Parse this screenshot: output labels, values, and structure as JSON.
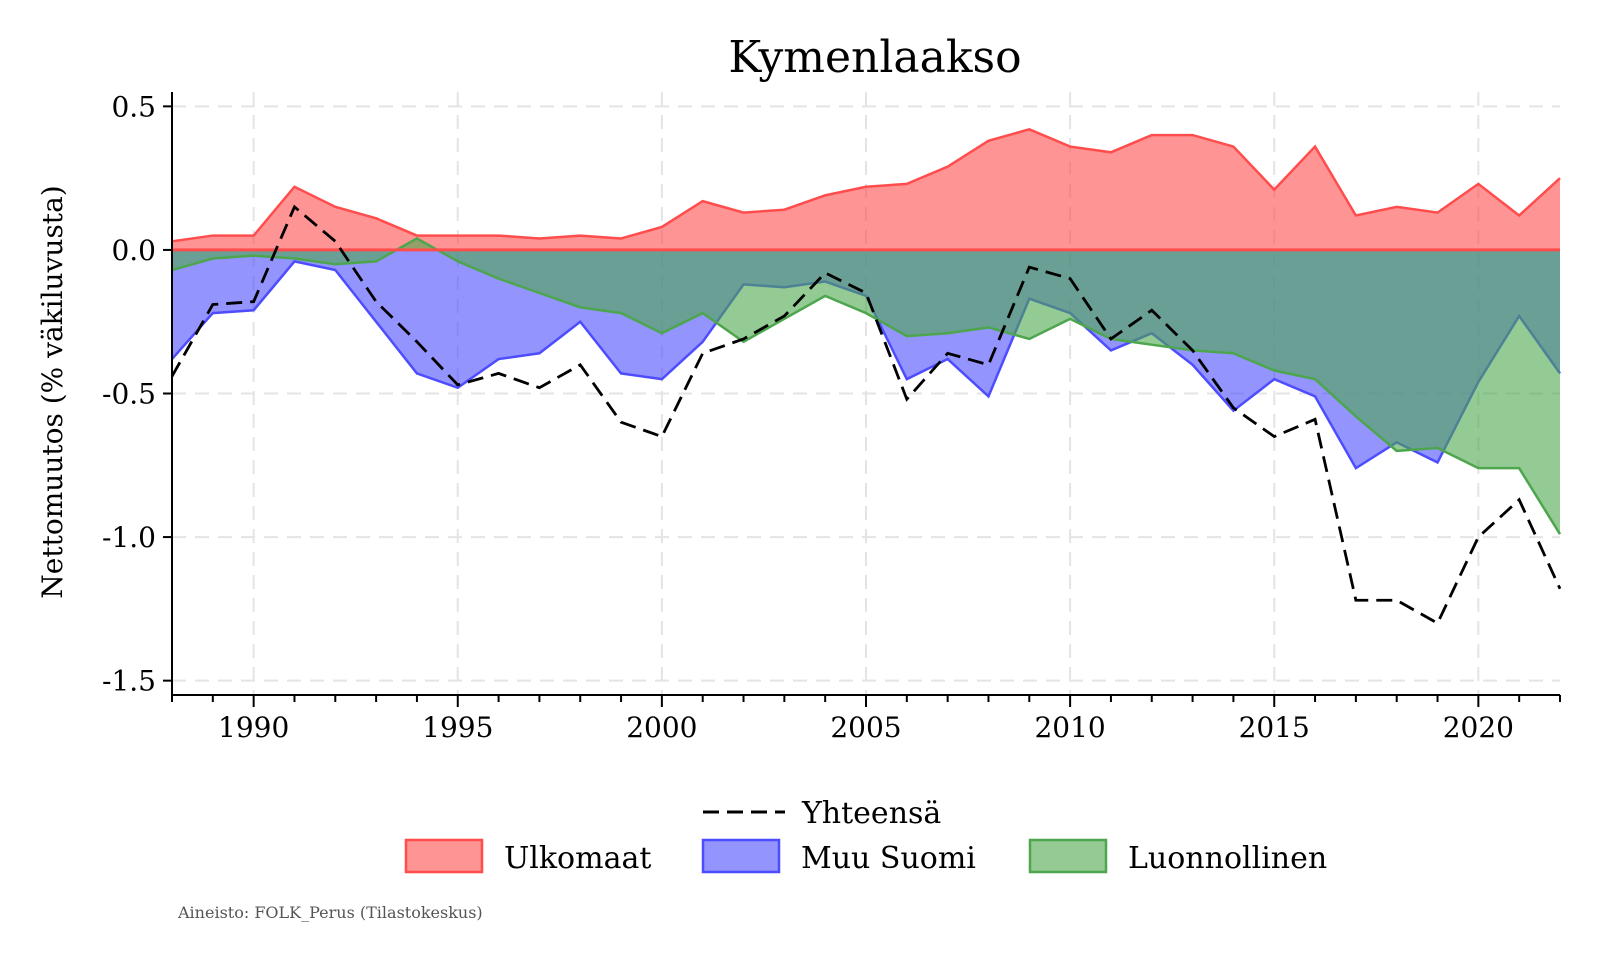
{
  "chart_data": {
    "type": "area",
    "title": "Kymenlaakso",
    "xlabel": "",
    "ylabel": "Nettomuutos (% väkiluvusta)",
    "xlim": [
      1988,
      2022
    ],
    "ylim": [
      -1.55,
      0.55
    ],
    "xticks": [
      1990,
      1995,
      2000,
      2005,
      2010,
      2015,
      2020
    ],
    "yticks": [
      0.5,
      0.0,
      -0.5,
      -1.0,
      -1.5
    ],
    "ytick_labels": [
      "0.5",
      "0.0",
      "-0.5",
      "-1.0",
      "-1.5"
    ],
    "grid": true,
    "source": "Aineisto: FOLK_Perus (Tilastokeskus)",
    "x": [
      1988,
      1989,
      1990,
      1991,
      1992,
      1993,
      1994,
      1995,
      1996,
      1997,
      1998,
      1999,
      2000,
      2001,
      2002,
      2003,
      2004,
      2005,
      2006,
      2007,
      2008,
      2009,
      2010,
      2011,
      2012,
      2013,
      2014,
      2015,
      2016,
      2017,
      2018,
      2019,
      2020,
      2021,
      2022
    ],
    "series": [
      {
        "name": "Ulkomaat",
        "kind": "area",
        "color": "#ff4d4d",
        "values": [
          0.03,
          0.05,
          0.05,
          0.22,
          0.15,
          0.11,
          0.05,
          0.05,
          0.05,
          0.04,
          0.05,
          0.04,
          0.08,
          0.17,
          0.13,
          0.14,
          0.19,
          0.22,
          0.23,
          0.29,
          0.38,
          0.42,
          0.36,
          0.34,
          0.4,
          0.4,
          0.36,
          0.21,
          0.36,
          0.12,
          0.15,
          0.13,
          0.23,
          0.12,
          0.25
        ]
      },
      {
        "name": "Muu Suomi",
        "kind": "area",
        "color": "#4d4dff",
        "values": [
          -0.38,
          -0.22,
          -0.21,
          -0.04,
          -0.07,
          -0.25,
          -0.43,
          -0.48,
          -0.38,
          -0.36,
          -0.25,
          -0.43,
          -0.45,
          -0.32,
          -0.12,
          -0.13,
          -0.11,
          -0.16,
          -0.45,
          -0.38,
          -0.51,
          -0.17,
          -0.22,
          -0.35,
          -0.29,
          -0.4,
          -0.56,
          -0.45,
          -0.51,
          -0.76,
          -0.67,
          -0.74,
          -0.46,
          -0.23,
          -0.43
        ]
      },
      {
        "name": "Luonnollinen",
        "kind": "area",
        "color": "#4da64d",
        "values": [
          -0.07,
          -0.03,
          -0.02,
          -0.03,
          -0.05,
          -0.04,
          0.04,
          -0.04,
          -0.1,
          -0.15,
          -0.2,
          -0.22,
          -0.29,
          -0.22,
          -0.32,
          -0.24,
          -0.16,
          -0.22,
          -0.3,
          -0.29,
          -0.27,
          -0.31,
          -0.24,
          -0.31,
          -0.33,
          -0.35,
          -0.36,
          -0.42,
          -0.45,
          -0.58,
          -0.7,
          -0.69,
          -0.76,
          -0.76,
          -0.99
        ]
      },
      {
        "name": "Yhteensä",
        "kind": "line",
        "color": "#000000",
        "values": [
          -0.44,
          -0.19,
          -0.18,
          0.15,
          0.03,
          -0.18,
          -0.32,
          -0.47,
          -0.43,
          -0.48,
          -0.4,
          -0.6,
          -0.65,
          -0.36,
          -0.31,
          -0.23,
          -0.08,
          -0.15,
          -0.52,
          -0.36,
          -0.4,
          -0.06,
          -0.1,
          -0.31,
          -0.21,
          -0.35,
          -0.55,
          -0.65,
          -0.59,
          -1.22,
          -1.22,
          -1.3,
          -1.0,
          -0.87,
          -1.18
        ]
      }
    ],
    "legend": {
      "placement": "bottom",
      "entries": [
        "Yhteensä",
        "Ulkomaat",
        "Muu Suomi",
        "Luonnollinen"
      ]
    }
  }
}
